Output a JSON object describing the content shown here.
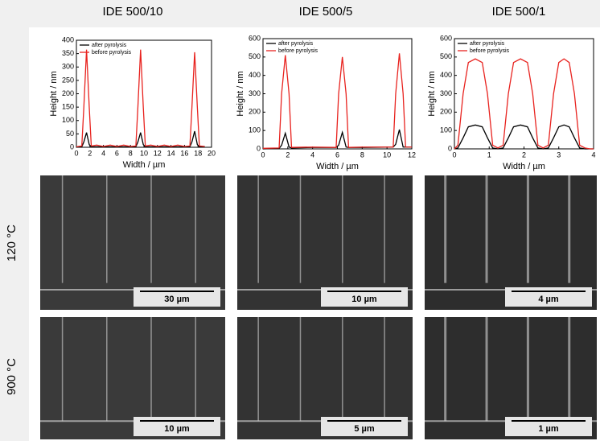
{
  "chart_data": [
    {
      "type": "line",
      "column_title": "IDE 500/10",
      "xlabel": "Width / µm",
      "ylabel": "Height / nm",
      "x": [
        0,
        0.8,
        1.1,
        1.5,
        1.9,
        2.2,
        3,
        4,
        5,
        6,
        7,
        8,
        8.8,
        9.1,
        9.5,
        9.9,
        10.2,
        11,
        12,
        13,
        14,
        15,
        16,
        16.8,
        17.1,
        17.5,
        17.9,
        18.2,
        19
      ],
      "series": [
        {
          "name": "after pyrolysis",
          "color": "#000000",
          "values": [
            0,
            2,
            20,
            55,
            10,
            2,
            2,
            2,
            2,
            2,
            2,
            2,
            2,
            20,
            55,
            10,
            2,
            2,
            2,
            2,
            2,
            2,
            2,
            2,
            20,
            60,
            10,
            2,
            2
          ]
        },
        {
          "name": "before pyrolysis",
          "color": "#e8231f",
          "values": [
            2,
            5,
            150,
            365,
            150,
            5,
            8,
            3,
            8,
            3,
            8,
            3,
            5,
            150,
            365,
            150,
            5,
            8,
            3,
            8,
            3,
            8,
            3,
            5,
            150,
            355,
            150,
            5,
            3
          ]
        }
      ],
      "xlim": [
        0,
        20
      ],
      "xticks": [
        0,
        2,
        4,
        6,
        8,
        10,
        12,
        14,
        16,
        18,
        20
      ],
      "ylim": [
        0,
        400
      ],
      "yticks": [
        0,
        50,
        100,
        150,
        200,
        250,
        300,
        350,
        400
      ],
      "legend": "upper-left"
    },
    {
      "type": "line",
      "column_title": "IDE 500/5",
      "xlabel": "Width / µm",
      "ylabel": "Height / nm",
      "x": [
        0,
        1.3,
        1.5,
        1.8,
        2.1,
        2.3,
        4,
        5.9,
        6.1,
        6.4,
        6.7,
        6.9,
        8,
        10.5,
        10.7,
        11,
        11.3,
        11.5,
        12
      ],
      "series": [
        {
          "name": "after pyrolysis",
          "color": "#000000",
          "values": [
            0,
            2,
            20,
            85,
            10,
            5,
            8,
            8,
            20,
            90,
            10,
            8,
            8,
            10,
            25,
            105,
            10,
            10,
            10
          ]
        },
        {
          "name": "before pyrolysis",
          "color": "#e8231f",
          "values": [
            3,
            5,
            300,
            510,
            300,
            8,
            10,
            8,
            300,
            500,
            300,
            8,
            10,
            10,
            300,
            520,
            300,
            10,
            10
          ]
        }
      ],
      "xlim": [
        0,
        12
      ],
      "xticks": [
        0,
        2,
        4,
        6,
        8,
        10,
        12
      ],
      "ylim": [
        0,
        600
      ],
      "yticks": [
        0,
        100,
        200,
        300,
        400,
        500,
        600
      ],
      "legend": "upper-left"
    },
    {
      "type": "line",
      "column_title": "IDE 500/1",
      "xlabel": "Width / µm",
      "ylabel": "Height / nm",
      "x": [
        0,
        0.1,
        0.25,
        0.4,
        0.6,
        0.8,
        0.95,
        1.1,
        1.25,
        1.4,
        1.55,
        1.7,
        1.9,
        2.1,
        2.25,
        2.4,
        2.55,
        2.7,
        2.85,
        3.0,
        3.15,
        3.3,
        3.45,
        3.6,
        3.75,
        3.9,
        4
      ],
      "series": [
        {
          "name": "after pyrolysis",
          "color": "#000000",
          "values": [
            0,
            5,
            60,
            120,
            130,
            120,
            60,
            5,
            0,
            5,
            60,
            120,
            130,
            120,
            60,
            5,
            0,
            5,
            60,
            120,
            130,
            120,
            60,
            5,
            0,
            0,
            0
          ]
        },
        {
          "name": "before pyrolysis",
          "color": "#e8231f",
          "values": [
            0,
            20,
            300,
            470,
            490,
            470,
            300,
            20,
            5,
            20,
            300,
            470,
            490,
            470,
            300,
            20,
            5,
            20,
            300,
            470,
            490,
            470,
            300,
            20,
            5,
            0,
            0
          ]
        }
      ],
      "xlim": [
        0,
        4
      ],
      "xticks": [
        0,
        1,
        2,
        3,
        4
      ],
      "ylim": [
        0,
        600
      ],
      "yticks": [
        0,
        100,
        200,
        300,
        400,
        500,
        600
      ],
      "legend": "upper-left"
    }
  ],
  "rows": [
    "120 °C",
    "900 °C"
  ],
  "scale_bars": [
    [
      "30 µm",
      "10 µm",
      "4 µm"
    ],
    [
      "10 µm",
      "5 µm",
      "1 µm"
    ]
  ]
}
